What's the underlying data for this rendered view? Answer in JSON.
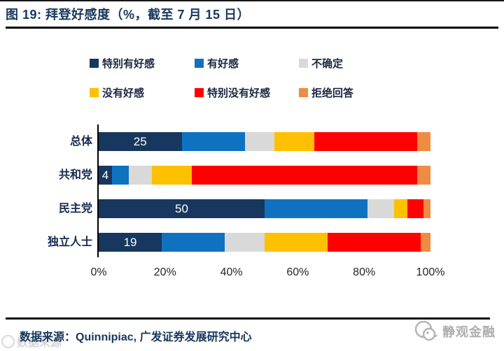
{
  "figure": {
    "title": "图 19:  拜登好感度（%，截至 7 月 15 日）",
    "source": "数据来源：Quinnipiac, 广发证券发展研究中心",
    "watermark_ghost": "数据来源",
    "logo_text": "静观金融"
  },
  "chart_data": {
    "type": "bar",
    "orientation": "horizontal",
    "stacked": true,
    "title": "拜登好感度（%，截至 7 月 15 日）",
    "categories": [
      "总体",
      "共和党",
      "民主党",
      "独立人士"
    ],
    "series": [
      {
        "name": "特别有好感",
        "color": "#17375E",
        "values": [
          25,
          4,
          50,
          19
        ]
      },
      {
        "name": "有好感",
        "color": "#0F72C1",
        "values": [
          19,
          5,
          31,
          19
        ]
      },
      {
        "name": "不确定",
        "color": "#D9D9D9",
        "values": [
          9,
          7,
          8,
          12
        ]
      },
      {
        "name": "没有好感",
        "color": "#FFC000",
        "values": [
          12,
          12,
          4,
          19
        ]
      },
      {
        "name": "特别没有好感",
        "color": "#FE0000",
        "values": [
          31,
          68,
          5,
          28
        ]
      },
      {
        "name": "拒绝回答",
        "color": "#EF8C42",
        "values": [
          4,
          4,
          2,
          3
        ]
      }
    ],
    "data_labels": {
      "series": "特别有好感",
      "values": [
        "25",
        "4",
        "50",
        "19"
      ]
    },
    "x_ticks": [
      "0%",
      "20%",
      "40%",
      "60%",
      "80%",
      "100%"
    ],
    "xlim": [
      0,
      100
    ],
    "legend_position": "top",
    "grid": false
  }
}
